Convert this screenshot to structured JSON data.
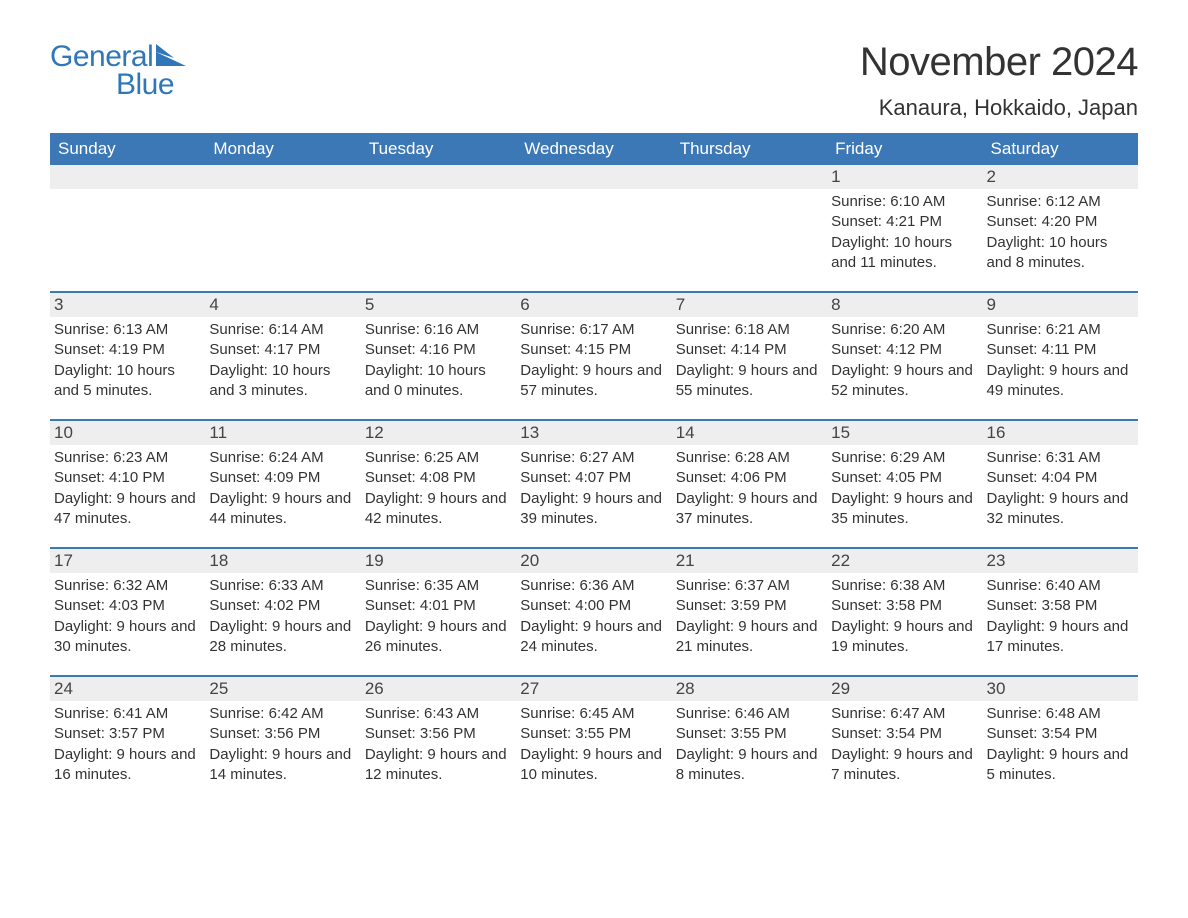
{
  "brand": {
    "word1": "General",
    "word2": "Blue",
    "brand_color": "#2f77b9"
  },
  "title": "November 2024",
  "location": "Kanaura, Hokkaido, Japan",
  "colors": {
    "header_bg": "#3d78b6",
    "header_text": "#ffffff",
    "row_border": "#3d78b6",
    "daynum_bg": "#eeeeee",
    "page_bg": "#ffffff",
    "text": "#333333"
  },
  "weekdays": [
    "Sunday",
    "Monday",
    "Tuesday",
    "Wednesday",
    "Thursday",
    "Friday",
    "Saturday"
  ],
  "weeks": [
    [
      null,
      null,
      null,
      null,
      null,
      {
        "n": "1",
        "sunrise": "Sunrise: 6:10 AM",
        "sunset": "Sunset: 4:21 PM",
        "daylight": "Daylight: 10 hours and 11 minutes."
      },
      {
        "n": "2",
        "sunrise": "Sunrise: 6:12 AM",
        "sunset": "Sunset: 4:20 PM",
        "daylight": "Daylight: 10 hours and 8 minutes."
      }
    ],
    [
      {
        "n": "3",
        "sunrise": "Sunrise: 6:13 AM",
        "sunset": "Sunset: 4:19 PM",
        "daylight": "Daylight: 10 hours and 5 minutes."
      },
      {
        "n": "4",
        "sunrise": "Sunrise: 6:14 AM",
        "sunset": "Sunset: 4:17 PM",
        "daylight": "Daylight: 10 hours and 3 minutes."
      },
      {
        "n": "5",
        "sunrise": "Sunrise: 6:16 AM",
        "sunset": "Sunset: 4:16 PM",
        "daylight": "Daylight: 10 hours and 0 minutes."
      },
      {
        "n": "6",
        "sunrise": "Sunrise: 6:17 AM",
        "sunset": "Sunset: 4:15 PM",
        "daylight": "Daylight: 9 hours and 57 minutes."
      },
      {
        "n": "7",
        "sunrise": "Sunrise: 6:18 AM",
        "sunset": "Sunset: 4:14 PM",
        "daylight": "Daylight: 9 hours and 55 minutes."
      },
      {
        "n": "8",
        "sunrise": "Sunrise: 6:20 AM",
        "sunset": "Sunset: 4:12 PM",
        "daylight": "Daylight: 9 hours and 52 minutes."
      },
      {
        "n": "9",
        "sunrise": "Sunrise: 6:21 AM",
        "sunset": "Sunset: 4:11 PM",
        "daylight": "Daylight: 9 hours and 49 minutes."
      }
    ],
    [
      {
        "n": "10",
        "sunrise": "Sunrise: 6:23 AM",
        "sunset": "Sunset: 4:10 PM",
        "daylight": "Daylight: 9 hours and 47 minutes."
      },
      {
        "n": "11",
        "sunrise": "Sunrise: 6:24 AM",
        "sunset": "Sunset: 4:09 PM",
        "daylight": "Daylight: 9 hours and 44 minutes."
      },
      {
        "n": "12",
        "sunrise": "Sunrise: 6:25 AM",
        "sunset": "Sunset: 4:08 PM",
        "daylight": "Daylight: 9 hours and 42 minutes."
      },
      {
        "n": "13",
        "sunrise": "Sunrise: 6:27 AM",
        "sunset": "Sunset: 4:07 PM",
        "daylight": "Daylight: 9 hours and 39 minutes."
      },
      {
        "n": "14",
        "sunrise": "Sunrise: 6:28 AM",
        "sunset": "Sunset: 4:06 PM",
        "daylight": "Daylight: 9 hours and 37 minutes."
      },
      {
        "n": "15",
        "sunrise": "Sunrise: 6:29 AM",
        "sunset": "Sunset: 4:05 PM",
        "daylight": "Daylight: 9 hours and 35 minutes."
      },
      {
        "n": "16",
        "sunrise": "Sunrise: 6:31 AM",
        "sunset": "Sunset: 4:04 PM",
        "daylight": "Daylight: 9 hours and 32 minutes."
      }
    ],
    [
      {
        "n": "17",
        "sunrise": "Sunrise: 6:32 AM",
        "sunset": "Sunset: 4:03 PM",
        "daylight": "Daylight: 9 hours and 30 minutes."
      },
      {
        "n": "18",
        "sunrise": "Sunrise: 6:33 AM",
        "sunset": "Sunset: 4:02 PM",
        "daylight": "Daylight: 9 hours and 28 minutes."
      },
      {
        "n": "19",
        "sunrise": "Sunrise: 6:35 AM",
        "sunset": "Sunset: 4:01 PM",
        "daylight": "Daylight: 9 hours and 26 minutes."
      },
      {
        "n": "20",
        "sunrise": "Sunrise: 6:36 AM",
        "sunset": "Sunset: 4:00 PM",
        "daylight": "Daylight: 9 hours and 24 minutes."
      },
      {
        "n": "21",
        "sunrise": "Sunrise: 6:37 AM",
        "sunset": "Sunset: 3:59 PM",
        "daylight": "Daylight: 9 hours and 21 minutes."
      },
      {
        "n": "22",
        "sunrise": "Sunrise: 6:38 AM",
        "sunset": "Sunset: 3:58 PM",
        "daylight": "Daylight: 9 hours and 19 minutes."
      },
      {
        "n": "23",
        "sunrise": "Sunrise: 6:40 AM",
        "sunset": "Sunset: 3:58 PM",
        "daylight": "Daylight: 9 hours and 17 minutes."
      }
    ],
    [
      {
        "n": "24",
        "sunrise": "Sunrise: 6:41 AM",
        "sunset": "Sunset: 3:57 PM",
        "daylight": "Daylight: 9 hours and 16 minutes."
      },
      {
        "n": "25",
        "sunrise": "Sunrise: 6:42 AM",
        "sunset": "Sunset: 3:56 PM",
        "daylight": "Daylight: 9 hours and 14 minutes."
      },
      {
        "n": "26",
        "sunrise": "Sunrise: 6:43 AM",
        "sunset": "Sunset: 3:56 PM",
        "daylight": "Daylight: 9 hours and 12 minutes."
      },
      {
        "n": "27",
        "sunrise": "Sunrise: 6:45 AM",
        "sunset": "Sunset: 3:55 PM",
        "daylight": "Daylight: 9 hours and 10 minutes."
      },
      {
        "n": "28",
        "sunrise": "Sunrise: 6:46 AM",
        "sunset": "Sunset: 3:55 PM",
        "daylight": "Daylight: 9 hours and 8 minutes."
      },
      {
        "n": "29",
        "sunrise": "Sunrise: 6:47 AM",
        "sunset": "Sunset: 3:54 PM",
        "daylight": "Daylight: 9 hours and 7 minutes."
      },
      {
        "n": "30",
        "sunrise": "Sunrise: 6:48 AM",
        "sunset": "Sunset: 3:54 PM",
        "daylight": "Daylight: 9 hours and 5 minutes."
      }
    ]
  ]
}
